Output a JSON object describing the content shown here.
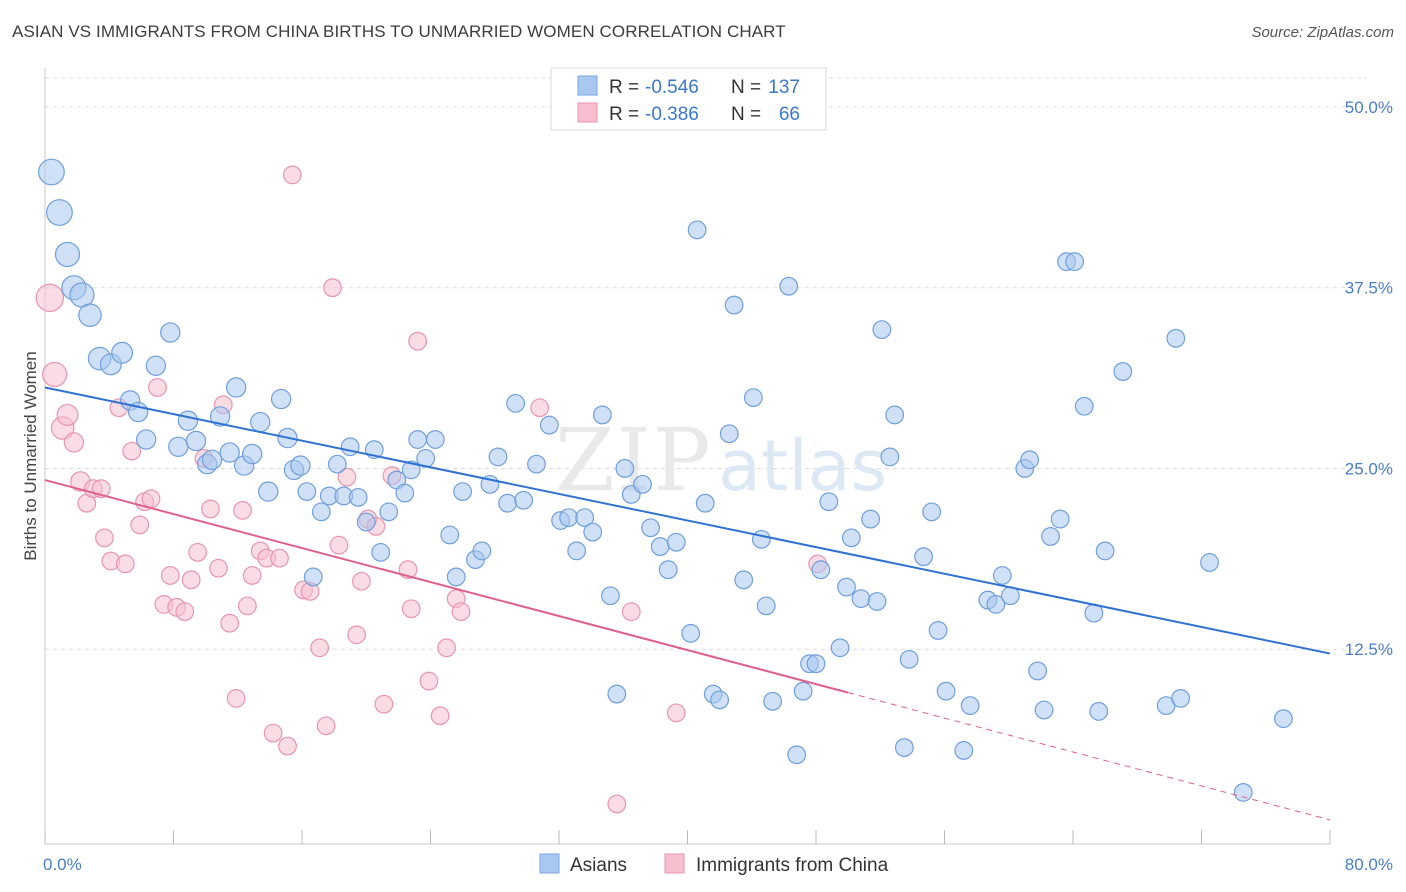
{
  "title": "ASIAN VS IMMIGRANTS FROM CHINA BIRTHS TO UNMARRIED WOMEN CORRELATION CHART",
  "source": "Source: ZipAtlas.com",
  "watermark": {
    "zip": "ZIP",
    "atlas": "atlas"
  },
  "legend_box": {
    "rows": [
      {
        "r_label": "R =",
        "r_value": "-0.546",
        "n_label": "N =",
        "n_value": "137",
        "color": "#a9c8f0",
        "stroke": "#7ba6e0"
      },
      {
        "r_label": "R =",
        "r_value": "-0.386",
        "n_label": "N =",
        "n_value": "66",
        "color": "#f6bfd0",
        "stroke": "#e895b0"
      }
    ]
  },
  "bottom_legend": [
    {
      "label": "Asians",
      "color": "#a9c8f0",
      "stroke": "#7ba6e0"
    },
    {
      "label": "Immigrants from China",
      "color": "#f6bfd0",
      "stroke": "#e895b0"
    }
  ],
  "chart_data": {
    "type": "scatter",
    "xlabel": "",
    "ylabel": "Births to Unmarried Women",
    "xlim": [
      0,
      80
    ],
    "ylim": [
      0,
      52
    ],
    "x_tick_labels": [
      "0.0%",
      "80.0%"
    ],
    "y_ticks": [
      12.5,
      25.0,
      37.5,
      50.0
    ],
    "y_tick_labels": [
      "12.5%",
      "25.0%",
      "37.5%",
      "50.0%"
    ],
    "grid": true,
    "legend_position": "top-center",
    "series": [
      {
        "name": "Asians",
        "color": "#a9c8f0",
        "stroke": "#6f9fdc",
        "trend": {
          "x0": 0,
          "y0": 30.6,
          "x1": 80,
          "y1": 12.2,
          "color": "#2f72d4"
        },
        "points": [
          [
            0.4,
            45.5,
            1.6
          ],
          [
            0.9,
            42.7,
            1.6
          ],
          [
            1.4,
            39.8,
            1.5
          ],
          [
            1.8,
            37.5,
            1.5
          ],
          [
            2.3,
            37.0,
            1.5
          ],
          [
            2.8,
            35.6,
            1.4
          ],
          [
            3.4,
            32.6,
            1.4
          ],
          [
            4.1,
            32.2,
            1.3
          ],
          [
            4.8,
            33.0,
            1.3
          ],
          [
            5.3,
            29.7,
            1.2
          ],
          [
            5.8,
            28.9,
            1.2
          ],
          [
            6.3,
            27.0,
            1.2
          ],
          [
            6.9,
            32.1,
            1.2
          ],
          [
            7.8,
            34.4,
            1.2
          ],
          [
            8.3,
            26.5,
            1.2
          ],
          [
            8.9,
            28.3,
            1.2
          ],
          [
            9.4,
            26.9,
            1.2
          ],
          [
            10.1,
            25.3,
            1.2
          ],
          [
            10.4,
            25.6,
            1.2
          ],
          [
            10.9,
            28.6,
            1.2
          ],
          [
            11.5,
            26.1,
            1.2
          ],
          [
            11.9,
            30.6,
            1.2
          ],
          [
            12.4,
            25.2,
            1.2
          ],
          [
            12.9,
            26.0,
            1.2
          ],
          [
            13.4,
            28.2,
            1.2
          ],
          [
            13.9,
            23.4,
            1.2
          ],
          [
            14.7,
            29.8,
            1.2
          ],
          [
            15.1,
            27.1,
            1.2
          ],
          [
            15.5,
            24.9,
            1.2
          ],
          [
            15.9,
            25.2,
            1.2
          ],
          [
            16.3,
            23.4,
            1.1
          ],
          [
            16.7,
            17.5,
            1.1
          ],
          [
            17.2,
            22.0,
            1.1
          ],
          [
            17.7,
            23.1,
            1.1
          ],
          [
            18.2,
            25.3,
            1.1
          ],
          [
            18.6,
            23.1,
            1.1
          ],
          [
            19.0,
            26.5,
            1.1
          ],
          [
            19.5,
            23.0,
            1.1
          ],
          [
            20.0,
            21.3,
            1.1
          ],
          [
            20.5,
            26.3,
            1.1
          ],
          [
            20.9,
            19.2,
            1.1
          ],
          [
            21.4,
            22.0,
            1.1
          ],
          [
            21.9,
            24.2,
            1.1
          ],
          [
            22.4,
            23.3,
            1.1
          ],
          [
            22.8,
            24.9,
            1.1
          ],
          [
            23.2,
            27.0,
            1.1
          ],
          [
            23.7,
            25.7,
            1.1
          ],
          [
            24.3,
            27.0,
            1.1
          ],
          [
            25.2,
            20.4,
            1.1
          ],
          [
            25.6,
            17.5,
            1.1
          ],
          [
            26.0,
            23.4,
            1.1
          ],
          [
            26.8,
            18.7,
            1.1
          ],
          [
            27.2,
            19.3,
            1.1
          ],
          [
            27.7,
            23.9,
            1.1
          ],
          [
            28.2,
            25.8,
            1.1
          ],
          [
            28.8,
            22.6,
            1.1
          ],
          [
            29.3,
            29.5,
            1.1
          ],
          [
            29.8,
            22.8,
            1.1
          ],
          [
            30.6,
            25.3,
            1.1
          ],
          [
            31.4,
            28.0,
            1.1
          ],
          [
            32.1,
            21.4,
            1.1
          ],
          [
            32.6,
            21.6,
            1.1
          ],
          [
            33.1,
            19.3,
            1.1
          ],
          [
            33.6,
            21.6,
            1.1
          ],
          [
            34.1,
            20.6,
            1.1
          ],
          [
            34.7,
            28.7,
            1.1
          ],
          [
            35.2,
            16.2,
            1.1
          ],
          [
            35.6,
            9.4,
            1.1
          ],
          [
            36.1,
            25.0,
            1.1
          ],
          [
            36.5,
            23.2,
            1.1
          ],
          [
            37.2,
            23.9,
            1.1
          ],
          [
            37.7,
            20.9,
            1.1
          ],
          [
            38.3,
            19.6,
            1.1
          ],
          [
            38.8,
            18.0,
            1.1
          ],
          [
            39.3,
            19.9,
            1.1
          ],
          [
            40.2,
            13.6,
            1.1
          ],
          [
            40.6,
            41.5,
            1.1
          ],
          [
            41.1,
            22.6,
            1.1
          ],
          [
            41.6,
            9.4,
            1.1
          ],
          [
            42.0,
            9.0,
            1.1
          ],
          [
            42.6,
            27.4,
            1.1
          ],
          [
            42.9,
            36.3,
            1.1
          ],
          [
            43.5,
            17.3,
            1.1
          ],
          [
            44.1,
            29.9,
            1.1
          ],
          [
            44.6,
            20.1,
            1.1
          ],
          [
            44.9,
            15.5,
            1.1
          ],
          [
            45.3,
            8.9,
            1.1
          ],
          [
            46.3,
            37.6,
            1.1
          ],
          [
            46.8,
            5.2,
            1.1
          ],
          [
            47.2,
            9.6,
            1.1
          ],
          [
            47.6,
            11.5,
            1.1
          ],
          [
            48.0,
            11.5,
            1.1
          ],
          [
            48.3,
            18.0,
            1.1
          ],
          [
            48.8,
            22.7,
            1.1
          ],
          [
            49.5,
            12.6,
            1.1
          ],
          [
            49.9,
            16.8,
            1.1
          ],
          [
            50.2,
            20.2,
            1.1
          ],
          [
            50.8,
            16.0,
            1.1
          ],
          [
            51.4,
            21.5,
            1.1
          ],
          [
            51.8,
            15.8,
            1.1
          ],
          [
            52.1,
            34.6,
            1.1
          ],
          [
            52.6,
            25.8,
            1.1
          ],
          [
            52.9,
            28.7,
            1.1
          ],
          [
            53.5,
            5.7,
            1.1
          ],
          [
            53.8,
            11.8,
            1.1
          ],
          [
            54.7,
            18.9,
            1.1
          ],
          [
            55.2,
            22.0,
            1.1
          ],
          [
            55.6,
            13.8,
            1.1
          ],
          [
            56.1,
            9.6,
            1.1
          ],
          [
            57.2,
            5.5,
            1.1
          ],
          [
            57.6,
            8.6,
            1.1
          ],
          [
            58.7,
            15.9,
            1.1
          ],
          [
            59.2,
            15.6,
            1.1
          ],
          [
            59.6,
            17.6,
            1.1
          ],
          [
            60.1,
            16.2,
            1.1
          ],
          [
            61.0,
            25.0,
            1.1
          ],
          [
            61.3,
            25.6,
            1.1
          ],
          [
            61.8,
            11.0,
            1.1
          ],
          [
            62.2,
            8.3,
            1.1
          ],
          [
            62.6,
            20.3,
            1.1
          ],
          [
            63.2,
            21.5,
            1.1
          ],
          [
            63.6,
            39.3,
            1.1
          ],
          [
            64.1,
            39.3,
            1.1
          ],
          [
            64.7,
            29.3,
            1.1
          ],
          [
            65.3,
            15.0,
            1.1
          ],
          [
            65.6,
            8.2,
            1.1
          ],
          [
            66.0,
            19.3,
            1.1
          ],
          [
            67.1,
            31.7,
            1.1
          ],
          [
            69.8,
            8.6,
            1.1
          ],
          [
            70.4,
            34.0,
            1.1
          ],
          [
            70.7,
            9.1,
            1.1
          ],
          [
            72.5,
            18.5,
            1.1
          ],
          [
            74.6,
            2.6,
            1.1
          ],
          [
            77.1,
            7.7,
            1.1
          ]
        ]
      },
      {
        "name": "Immigrants from China",
        "color": "#f6bfd0",
        "stroke": "#e895b0",
        "trend": {
          "x0": 0,
          "y0": 24.2,
          "x1": 50,
          "y1": 9.5,
          "dash_to_x": 80,
          "dash_to_y": 0.7,
          "color": "#e0608a"
        },
        "points": [
          [
            0.3,
            36.8,
            1.7
          ],
          [
            0.6,
            31.5,
            1.5
          ],
          [
            1.1,
            27.8,
            1.4
          ],
          [
            1.4,
            28.7,
            1.3
          ],
          [
            1.8,
            26.8,
            1.2
          ],
          [
            2.2,
            24.1,
            1.2
          ],
          [
            2.6,
            22.6,
            1.1
          ],
          [
            3.0,
            23.6,
            1.1
          ],
          [
            3.5,
            23.6,
            1.1
          ],
          [
            3.7,
            20.2,
            1.1
          ],
          [
            4.1,
            18.6,
            1.1
          ],
          [
            4.6,
            29.2,
            1.1
          ],
          [
            5.0,
            18.4,
            1.1
          ],
          [
            5.4,
            26.2,
            1.1
          ],
          [
            5.9,
            21.1,
            1.1
          ],
          [
            6.2,
            22.7,
            1.1
          ],
          [
            6.6,
            22.9,
            1.1
          ],
          [
            7.0,
            30.6,
            1.1
          ],
          [
            7.4,
            15.6,
            1.1
          ],
          [
            7.8,
            17.6,
            1.1
          ],
          [
            8.2,
            15.4,
            1.1
          ],
          [
            8.7,
            15.1,
            1.1
          ],
          [
            9.1,
            17.3,
            1.1
          ],
          [
            9.5,
            19.2,
            1.1
          ],
          [
            9.9,
            25.7,
            1.1
          ],
          [
            10.3,
            22.2,
            1.1
          ],
          [
            10.8,
            18.1,
            1.1
          ],
          [
            11.1,
            29.4,
            1.1
          ],
          [
            11.5,
            14.3,
            1.1
          ],
          [
            11.9,
            9.1,
            1.1
          ],
          [
            12.3,
            22.1,
            1.1
          ],
          [
            12.6,
            15.5,
            1.1
          ],
          [
            12.9,
            17.6,
            1.1
          ],
          [
            13.4,
            19.3,
            1.1
          ],
          [
            13.8,
            18.8,
            1.1
          ],
          [
            14.2,
            6.7,
            1.1
          ],
          [
            14.6,
            18.8,
            1.1
          ],
          [
            15.1,
            5.8,
            1.1
          ],
          [
            15.4,
            45.3,
            1.1
          ],
          [
            16.1,
            16.6,
            1.1
          ],
          [
            16.5,
            16.5,
            1.1
          ],
          [
            17.1,
            12.6,
            1.1
          ],
          [
            17.5,
            7.2,
            1.1
          ],
          [
            17.9,
            37.5,
            1.1
          ],
          [
            18.3,
            19.7,
            1.1
          ],
          [
            18.8,
            24.4,
            1.1
          ],
          [
            19.4,
            13.5,
            1.1
          ],
          [
            19.7,
            17.2,
            1.1
          ],
          [
            20.1,
            21.5,
            1.1
          ],
          [
            20.6,
            21.0,
            1.1
          ],
          [
            21.1,
            8.7,
            1.1
          ],
          [
            21.6,
            24.5,
            1.1
          ],
          [
            22.6,
            18.0,
            1.1
          ],
          [
            22.8,
            15.3,
            1.1
          ],
          [
            23.2,
            33.8,
            1.1
          ],
          [
            23.9,
            10.3,
            1.1
          ],
          [
            24.6,
            7.9,
            1.1
          ],
          [
            25.0,
            12.6,
            1.1
          ],
          [
            25.6,
            16.0,
            1.1
          ],
          [
            25.9,
            15.1,
            1.1
          ],
          [
            30.8,
            29.2,
            1.1
          ],
          [
            35.6,
            1.8,
            1.1
          ],
          [
            36.5,
            15.1,
            1.1
          ],
          [
            39.3,
            8.1,
            1.1
          ],
          [
            48.1,
            18.4,
            1.1
          ]
        ]
      }
    ]
  }
}
